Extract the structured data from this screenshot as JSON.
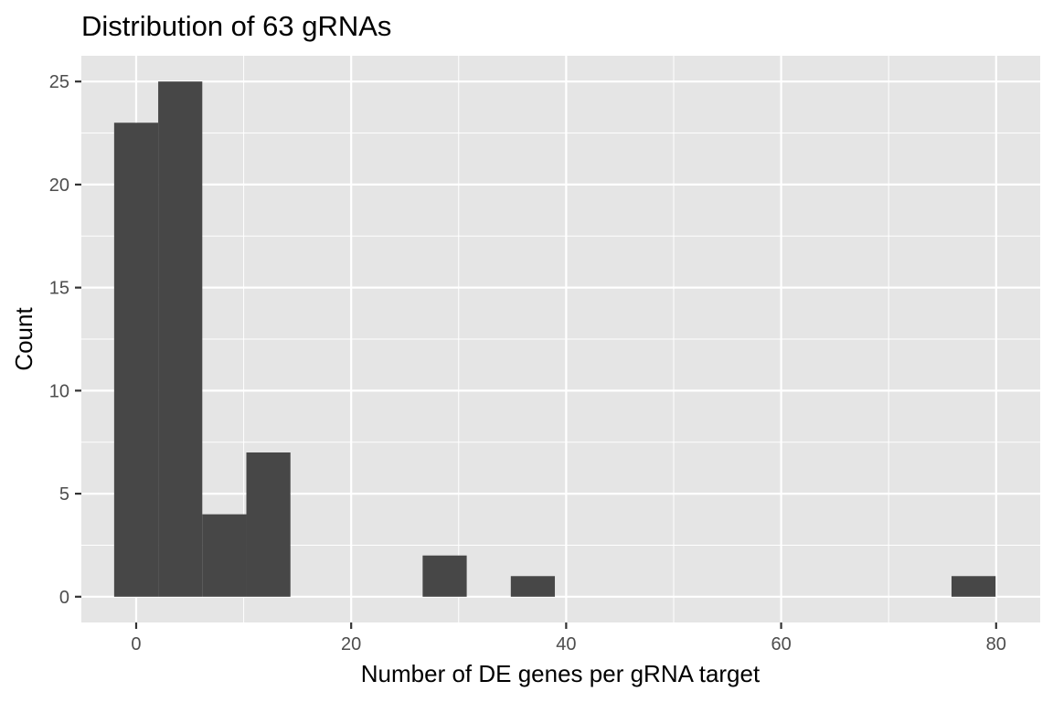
{
  "chart_data": {
    "type": "bar",
    "title": "Distribution of 63 gRNAs",
    "xlabel": "Number of DE genes per gRNA target",
    "ylabel": "Count",
    "xlim": [
      -5.1,
      84.1
    ],
    "ylim": [
      -1.25,
      26.25
    ],
    "x_ticks": [
      0,
      20,
      40,
      60,
      80
    ],
    "x_tick_labels": [
      "0",
      "20",
      "40",
      "60",
      "80"
    ],
    "y_ticks": [
      0,
      5,
      10,
      15,
      20,
      25
    ],
    "y_tick_labels": [
      "0",
      "5",
      "10",
      "15",
      "20",
      "25"
    ],
    "bin_width": 4.1,
    "bins": [
      {
        "x0": -2.05,
        "x1": 2.05,
        "count": 23
      },
      {
        "x0": 2.05,
        "x1": 6.15,
        "count": 25
      },
      {
        "x0": 6.15,
        "x1": 10.25,
        "count": 4
      },
      {
        "x0": 10.25,
        "x1": 14.35,
        "count": 7
      },
      {
        "x0": 26.65,
        "x1": 30.75,
        "count": 2
      },
      {
        "x0": 34.85,
        "x1": 38.95,
        "count": 1
      },
      {
        "x0": 75.85,
        "x1": 79.95,
        "count": 1
      }
    ],
    "grid": true,
    "colors": {
      "panel": "#e5e5e5",
      "gridline": "#ffffff",
      "bar": "#474747",
      "tick": "#333333"
    }
  }
}
